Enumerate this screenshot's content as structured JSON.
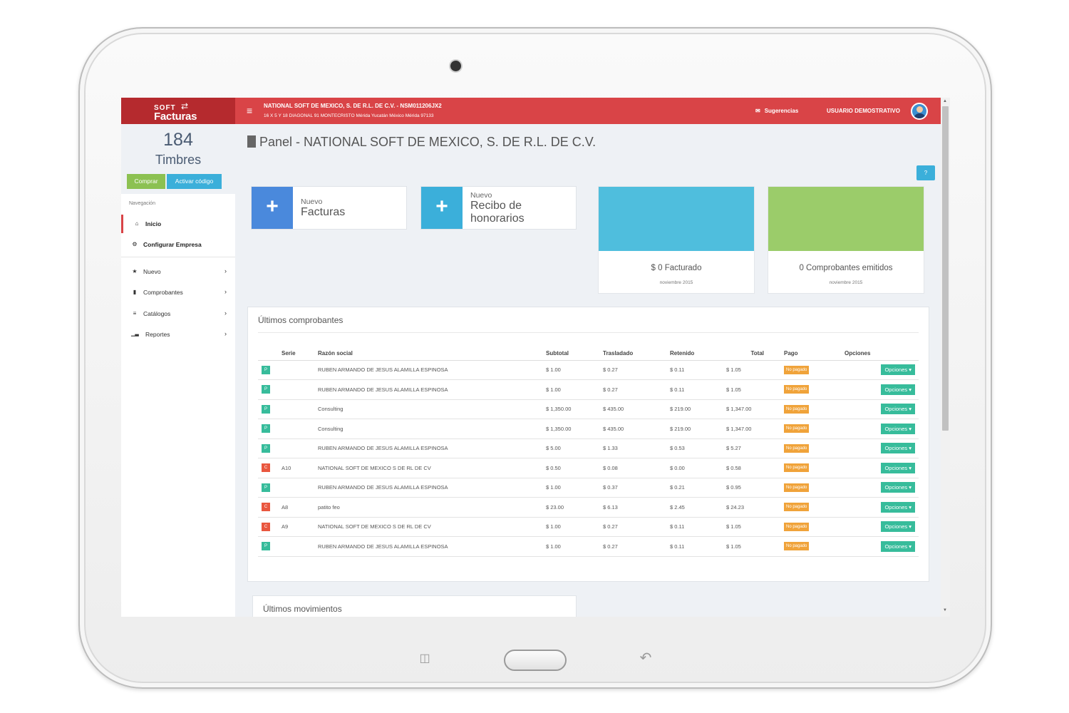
{
  "brand": {
    "line1": "SOFT",
    "line2": "Facturas"
  },
  "topbar": {
    "menu_icon": "bars-icon",
    "company_name": "NATIONAL SOFT DE MEXICO, S. DE R.L. DE C.V. - NSM011206JX2",
    "company_address": "16 X 5 Y 18 DIAGONAL 91 MONTECRISTO Mérida Yucatán México Mérida 97133",
    "suggestions_label": "Sugerencias",
    "user_label": "USUARIO DEMOSTRATIVO"
  },
  "credits": {
    "count": "184",
    "label": "Timbres",
    "buy_label": "Comprar",
    "code_label": "Activar código"
  },
  "nav": {
    "heading": "Navegación",
    "items": [
      {
        "label": "Inicio",
        "icon": "home-icon"
      },
      {
        "label": "Configurar Empresa",
        "icon": "gear-icon"
      },
      {
        "label": "Nuevo",
        "icon": "star-icon"
      },
      {
        "label": "Comprobantes",
        "icon": "file-icon"
      },
      {
        "label": "Catálogos",
        "icon": "list-icon"
      },
      {
        "label": "Reportes",
        "icon": "bar-chart-icon"
      }
    ]
  },
  "page": {
    "title": "Panel - NATIONAL SOFT DE MEXICO, S. DE R.L. DE C.V.",
    "help_icon": "question-icon"
  },
  "quick": [
    {
      "small": "Nuevo",
      "big": "Facturas",
      "color": "#4a89dc"
    },
    {
      "small": "Nuevo",
      "big": "Recibo de honorarios",
      "color": "#3bafda"
    }
  ],
  "stats": [
    {
      "value": "$ 0 Facturado",
      "date": "noviembre 2015",
      "color": "#4fbedd"
    },
    {
      "value": "0 Comprobantes emitidos",
      "date": "noviembre 2015",
      "color": "#9bcc6a"
    }
  ],
  "colors": {
    "brand": "#b52a2e",
    "topbar": "#d94447",
    "type_p": "#37bc9b",
    "type_c": "#e9573f",
    "badge": "#f0a33a",
    "opciones": "#37bc9b"
  },
  "receipts": {
    "title": "Últimos comprobantes",
    "headers": [
      "Serie",
      "Razón social",
      "Subtotal",
      "Trasladado",
      "Retenido",
      "Total",
      "Pago",
      "Opciones"
    ],
    "rows": [
      {
        "type": "P",
        "serie": "",
        "razon": "RUBEN ARMANDO DE JESUS ALAMILLA ESPINOSA",
        "subtotal": "$ 1.00",
        "trasladado": "$ 0.27",
        "retenido": "$ 0.11",
        "total": "$ 1.05",
        "pago": "No pagado",
        "opciones": "Opciones"
      },
      {
        "type": "P",
        "serie": "",
        "razon": "RUBEN ARMANDO DE JESUS ALAMILLA ESPINOSA",
        "subtotal": "$ 1.00",
        "trasladado": "$ 0.27",
        "retenido": "$ 0.11",
        "total": "$ 1.05",
        "pago": "No pagado",
        "opciones": "Opciones"
      },
      {
        "type": "P",
        "serie": "",
        "razon": "Consulting",
        "subtotal": "$ 1,350.00",
        "trasladado": "$ 435.00",
        "retenido": "$ 219.00",
        "total": "$ 1,347.00",
        "pago": "No pagado",
        "opciones": "Opciones"
      },
      {
        "type": "P",
        "serie": "",
        "razon": "Consulting",
        "subtotal": "$ 1,350.00",
        "trasladado": "$ 435.00",
        "retenido": "$ 219.00",
        "total": "$ 1,347.00",
        "pago": "No pagado",
        "opciones": "Opciones"
      },
      {
        "type": "P",
        "serie": "",
        "razon": "RUBEN ARMANDO DE JESUS ALAMILLA ESPINOSA",
        "subtotal": "$ 5.00",
        "trasladado": "$ 1.33",
        "retenido": "$ 0.53",
        "total": "$ 5.27",
        "pago": "No pagado",
        "opciones": "Opciones"
      },
      {
        "type": "C",
        "serie": "A10",
        "razon": "NATIONAL SOFT DE MEXICO S DE RL DE CV",
        "subtotal": "$ 0.50",
        "trasladado": "$ 0.08",
        "retenido": "$ 0.00",
        "total": "$ 0.58",
        "pago": "No pagado",
        "opciones": "Opciones"
      },
      {
        "type": "P",
        "serie": "",
        "razon": "RUBEN ARMANDO DE JESUS ALAMILLA ESPINOSA",
        "subtotal": "$ 1.00",
        "trasladado": "$ 0.37",
        "retenido": "$ 0.21",
        "total": "$ 0.95",
        "pago": "No pagado",
        "opciones": "Opciones"
      },
      {
        "type": "C",
        "serie": "A8",
        "razon": "patito feo",
        "subtotal": "$ 23.00",
        "trasladado": "$ 6.13",
        "retenido": "$ 2.45",
        "total": "$ 24.23",
        "pago": "No pagado",
        "opciones": "Opciones"
      },
      {
        "type": "C",
        "serie": "A9",
        "razon": "NATIONAL SOFT DE MEXICO S DE RL DE CV",
        "subtotal": "$ 1.00",
        "trasladado": "$ 0.27",
        "retenido": "$ 0.11",
        "total": "$ 1.05",
        "pago": "No pagado",
        "opciones": "Opciones"
      },
      {
        "type": "P",
        "serie": "",
        "razon": "RUBEN ARMANDO DE JESUS ALAMILLA ESPINOSA",
        "subtotal": "$ 1.00",
        "trasladado": "$ 0.27",
        "retenido": "$ 0.11",
        "total": "$ 1.05",
        "pago": "No pagado",
        "opciones": "Opciones"
      }
    ]
  },
  "movements": {
    "title": "Últimos movimientos"
  }
}
